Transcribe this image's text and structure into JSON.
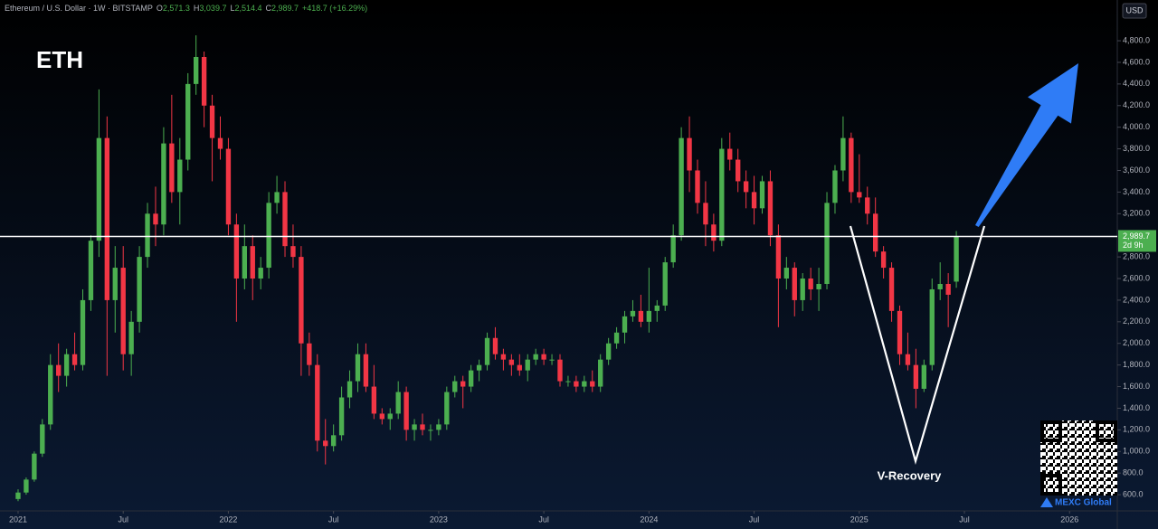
{
  "chart_data": {
    "type": "candlestick",
    "title": "Ethereum / U.S. Dollar · 1W · BITSTAMP",
    "header_fields": [
      {
        "prefix": "O",
        "text": "2,571.3"
      },
      {
        "prefix": "H",
        "text": "3,039.7"
      },
      {
        "prefix": "L",
        "text": "2,514.4"
      },
      {
        "prefix": "C",
        "text": "2,989.7"
      },
      {
        "prefix": "",
        "text": "+418.7 (+16.29%)"
      }
    ],
    "currency": "USD",
    "annotations": [
      "ETH",
      "V-Recovery"
    ],
    "watermark": "MEXC Global",
    "up_color": "#4caf50",
    "down_color": "#f23645",
    "grid": false,
    "xlim": [
      -4.47,
      271.8
    ],
    "xticks": [
      {
        "value": 0,
        "label": "2021"
      },
      {
        "value": 26,
        "label": "Jul"
      },
      {
        "value": 52,
        "label": "2022"
      },
      {
        "value": 78,
        "label": "Jul"
      },
      {
        "value": 104,
        "label": "2023"
      },
      {
        "value": 130,
        "label": "Jul"
      },
      {
        "value": 156,
        "label": "2024"
      },
      {
        "value": 182,
        "label": "Jul"
      },
      {
        "value": 208,
        "label": "2025"
      },
      {
        "value": 234,
        "label": "Jul"
      },
      {
        "value": 260,
        "label": "2026"
      }
    ],
    "ylim": [
      450,
      5177
    ],
    "yticks": [
      {
        "value": 600,
        "label": "600.0"
      },
      {
        "value": 800,
        "label": "800.0"
      },
      {
        "value": 1000,
        "label": "1,000.0"
      },
      {
        "value": 1200,
        "label": "1,200.0"
      },
      {
        "value": 1400,
        "label": "1,400.0"
      },
      {
        "value": 1600,
        "label": "1,600.0"
      },
      {
        "value": 1800,
        "label": "1,800.0"
      },
      {
        "value": 2000,
        "label": "2,000.0"
      },
      {
        "value": 2200,
        "label": "2,200.0"
      },
      {
        "value": 2400,
        "label": "2,400.0"
      },
      {
        "value": 2600,
        "label": "2,600.0"
      },
      {
        "value": 2800,
        "label": "2,800.0"
      },
      {
        "value": 3200,
        "label": "3,200.0"
      },
      {
        "value": 3400,
        "label": "3,400.0"
      },
      {
        "value": 3600,
        "label": "3,600.0"
      },
      {
        "value": 3800,
        "label": "3,800.0"
      },
      {
        "value": 4000,
        "label": "4,000.0"
      },
      {
        "value": 4200,
        "label": "4,200.0"
      },
      {
        "value": 4400,
        "label": "4,400.0"
      },
      {
        "value": 4600,
        "label": "4,600.0"
      },
      {
        "value": 4800,
        "label": "4,800.0"
      }
    ],
    "last_price": {
      "value": 2989.7,
      "label": "2,989.7",
      "countdown": "2d 9h"
    },
    "x": [
      0,
      2,
      4,
      6,
      8,
      10,
      12,
      14,
      16,
      18,
      20,
      22,
      24,
      26,
      28,
      30,
      32,
      34,
      36,
      38,
      40,
      42,
      44,
      46,
      48,
      50,
      52,
      54,
      56,
      58,
      60,
      62,
      64,
      66,
      68,
      70,
      72,
      74,
      76,
      78,
      80,
      82,
      84,
      86,
      88,
      90,
      92,
      94,
      96,
      98,
      100,
      102,
      104,
      106,
      108,
      110,
      112,
      114,
      116,
      118,
      120,
      122,
      124,
      126,
      128,
      130,
      132,
      134,
      136,
      138,
      140,
      142,
      144,
      146,
      148,
      150,
      152,
      154,
      156,
      158,
      160,
      162,
      164,
      166,
      168,
      170,
      172,
      174,
      176,
      178,
      180,
      182,
      184,
      186,
      188,
      190,
      192,
      194,
      196,
      198,
      200,
      202,
      204,
      206,
      208,
      210,
      212,
      214,
      216,
      218,
      220,
      222,
      224,
      226,
      228,
      230,
      232
    ],
    "open": [
      560,
      620,
      740,
      980,
      1250,
      1800,
      1700,
      1900,
      1800,
      2400,
      2950,
      3900,
      2400,
      2700,
      1900,
      2200,
      2800,
      3200,
      3100,
      3850,
      3400,
      3700,
      4400,
      4650,
      4200,
      3900,
      3800,
      3100,
      2600,
      2900,
      2600,
      2700,
      3300,
      3400,
      2900,
      2800,
      2000,
      1800,
      1100,
      1050,
      1150,
      1500,
      1650,
      1900,
      1600,
      1350,
      1300,
      1350,
      1550,
      1200,
      1250,
      1200,
      1200,
      1250,
      1550,
      1650,
      1600,
      1750,
      1800,
      2050,
      1900,
      1850,
      1800,
      1750,
      1850,
      1900,
      1850,
      1850,
      1650,
      1650,
      1600,
      1650,
      1600,
      1850,
      2000,
      2100,
      2250,
      2300,
      2200,
      2300,
      2350,
      2750,
      3000,
      3900,
      3600,
      3300,
      3100,
      2950,
      3800,
      3700,
      3500,
      3400,
      3250,
      3500,
      3000,
      2600,
      2700,
      2400,
      2600,
      2500,
      2550,
      3300,
      3600,
      3900,
      3400,
      3350,
      3200,
      2850,
      2700,
      2300,
      1900,
      1800,
      1580,
      1800,
      2500,
      2550,
      2571.3
    ],
    "high": [
      650,
      760,
      1000,
      1300,
      1900,
      2000,
      1950,
      2100,
      2500,
      3000,
      4350,
      4100,
      2900,
      2900,
      2300,
      2900,
      3300,
      3450,
      4000,
      4300,
      3900,
      4500,
      4850,
      4700,
      4300,
      4100,
      3900,
      3200,
      3100,
      3000,
      2800,
      3400,
      3550,
      3500,
      3100,
      2900,
      2100,
      1900,
      1300,
      1250,
      1600,
      1750,
      2000,
      2000,
      1800,
      1400,
      1400,
      1650,
      1600,
      1300,
      1350,
      1250,
      1300,
      1600,
      1700,
      1700,
      1800,
      1850,
      2100,
      2150,
      1950,
      1900,
      1900,
      1900,
      1950,
      1950,
      1900,
      1900,
      1700,
      1700,
      1700,
      1750,
      1900,
      2050,
      2150,
      2300,
      2400,
      2450,
      2700,
      2400,
      2800,
      3100,
      4000,
      4100,
      3700,
      3500,
      3200,
      3900,
      3950,
      3800,
      3600,
      3550,
      3550,
      3600,
      3100,
      2800,
      2750,
      2650,
      2700,
      2700,
      3400,
      3650,
      4100,
      3950,
      3750,
      3450,
      3350,
      2900,
      2750,
      2350,
      2100,
      1950,
      1850,
      2600,
      2750,
      2650,
      3039.7
    ],
    "low": [
      540,
      600,
      720,
      950,
      1200,
      1550,
      1600,
      1750,
      1750,
      2300,
      2800,
      1700,
      2100,
      1750,
      1700,
      2100,
      2700,
      2900,
      3000,
      3300,
      3100,
      3600,
      4300,
      4000,
      3500,
      3700,
      3000,
      2200,
      2500,
      2400,
      2500,
      2600,
      3200,
      2800,
      2700,
      1700,
      1700,
      1000,
      880,
      1000,
      1100,
      1400,
      1550,
      1550,
      1300,
      1250,
      1200,
      1300,
      1100,
      1100,
      1150,
      1100,
      1150,
      1200,
      1500,
      1400,
      1550,
      1650,
      1750,
      1850,
      1750,
      1700,
      1700,
      1650,
      1800,
      1800,
      1800,
      1600,
      1600,
      1550,
      1550,
      1550,
      1550,
      1800,
      1950,
      2000,
      2200,
      2150,
      2100,
      2200,
      2300,
      2700,
      2950,
      3400,
      3200,
      2900,
      2850,
      2900,
      3600,
      3400,
      3250,
      3100,
      3200,
      2900,
      2150,
      2500,
      2250,
      2300,
      2400,
      2300,
      2500,
      3200,
      3500,
      3300,
      3300,
      3100,
      2800,
      2600,
      2200,
      1800,
      1750,
      1400,
      1550,
      1750,
      2400,
      2150,
      2514.4
    ],
    "close": [
      620,
      740,
      980,
      1250,
      1800,
      1700,
      1900,
      1800,
      2400,
      2950,
      3900,
      2400,
      2700,
      1900,
      2200,
      2800,
      3200,
      3100,
      3850,
      3400,
      3700,
      4400,
      4650,
      4200,
      3900,
      3800,
      3100,
      2600,
      2900,
      2600,
      2700,
      3300,
      3400,
      2900,
      2800,
      2000,
      1800,
      1100,
      1050,
      1150,
      1500,
      1650,
      1900,
      1600,
      1350,
      1300,
      1350,
      1550,
      1200,
      1250,
      1200,
      1200,
      1250,
      1550,
      1650,
      1600,
      1750,
      1800,
      2050,
      1900,
      1850,
      1800,
      1750,
      1850,
      1900,
      1850,
      1850,
      1650,
      1650,
      1600,
      1650,
      1600,
      1850,
      2000,
      2100,
      2250,
      2300,
      2200,
      2300,
      2350,
      2750,
      3000,
      3900,
      3600,
      3300,
      3100,
      2950,
      3800,
      3700,
      3500,
      3400,
      3250,
      3500,
      3000,
      2600,
      2700,
      2400,
      2600,
      2500,
      2550,
      3300,
      3600,
      3900,
      3400,
      3350,
      3200,
      2850,
      2700,
      2300,
      1900,
      1800,
      1580,
      1800,
      2500,
      2550,
      2450,
      2989.7
    ]
  }
}
